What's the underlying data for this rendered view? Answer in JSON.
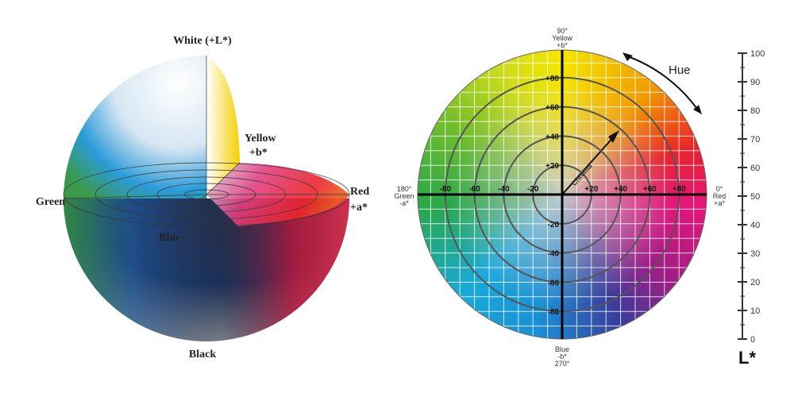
{
  "sphere": {
    "labels": {
      "white": "White (+L*)",
      "yellow": "Yellow",
      "plus_b": "+b*",
      "red": "Red",
      "plus_a": "+a*",
      "green": "Green",
      "blue": "Blue",
      "black": "Black"
    }
  },
  "wheel": {
    "top": [
      "90°",
      "Yellow",
      "+b*"
    ],
    "right": [
      "0°",
      "Red",
      "+a*"
    ],
    "left": [
      "180°",
      "Green",
      "-a*"
    ],
    "bottom": [
      "Blue",
      "-b*",
      "270°"
    ],
    "a_positive": [
      "+20",
      "+40",
      "+60",
      "+80"
    ],
    "a_negative": [
      "-20",
      "-40",
      "-60",
      "-80"
    ],
    "b_positive": [
      "+20",
      "+40",
      "+60",
      "+80"
    ],
    "b_negative": [
      "-20",
      "-40",
      "-60",
      "-80"
    ],
    "chroma_label": "Chroma",
    "hue_label": "Hue"
  },
  "lightness_scale": {
    "ticks": [
      0,
      10,
      20,
      30,
      40,
      50,
      60,
      70,
      80,
      90,
      100
    ],
    "label": "L*"
  }
}
